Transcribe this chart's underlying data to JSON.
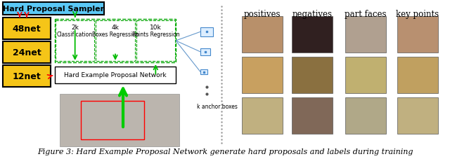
{
  "figsize": [
    6.4,
    2.28
  ],
  "dpi": 100,
  "bg_color": "#ffffff",
  "caption": "Figure 3: Hard Example Proposal Network generate hard proposals and labels during training",
  "caption_fontsize": 8.0,
  "title_box": "Hard Proposal Sampler",
  "title_box_color": "#5bc8f5",
  "title_box_edge": "#000000",
  "nets": [
    "48net",
    "24net",
    "12net"
  ],
  "net_color": "#f5c518",
  "net_edge": "#000000",
  "hepn_label": "Hard Example Proposal Network",
  "hepn_color": "#ffffff",
  "hepn_edge": "#000000",
  "inner_box_color": "#f8f8f8",
  "inner_box_edge": "#00aa00",
  "tasks_k": [
    "2k",
    "4k",
    "10k"
  ],
  "tasks_name": [
    "Classification",
    "Boxes Regression",
    "Points Regression"
  ],
  "task_color": "#ffffff",
  "task_edge": "#00aa00",
  "anchor_label": "k anchor boxes",
  "col_labels": [
    "positives",
    "negatives",
    "part faces",
    "key points"
  ],
  "col_label_fontsize": 8.5,
  "separator_color": "#888888",
  "anchor_box_color": "#ddeeff",
  "anchor_box_edge": "#4488cc",
  "face_colors": [
    [
      "#c8a060",
      "#c09060",
      "#b0a090",
      "#c0a070"
    ],
    [
      "#d0a050",
      "#d0b050",
      "#c0b070",
      "#c0a060"
    ],
    [
      "#d0b080",
      "#c8a888",
      "#c0b090",
      "#c8b078"
    ]
  ]
}
